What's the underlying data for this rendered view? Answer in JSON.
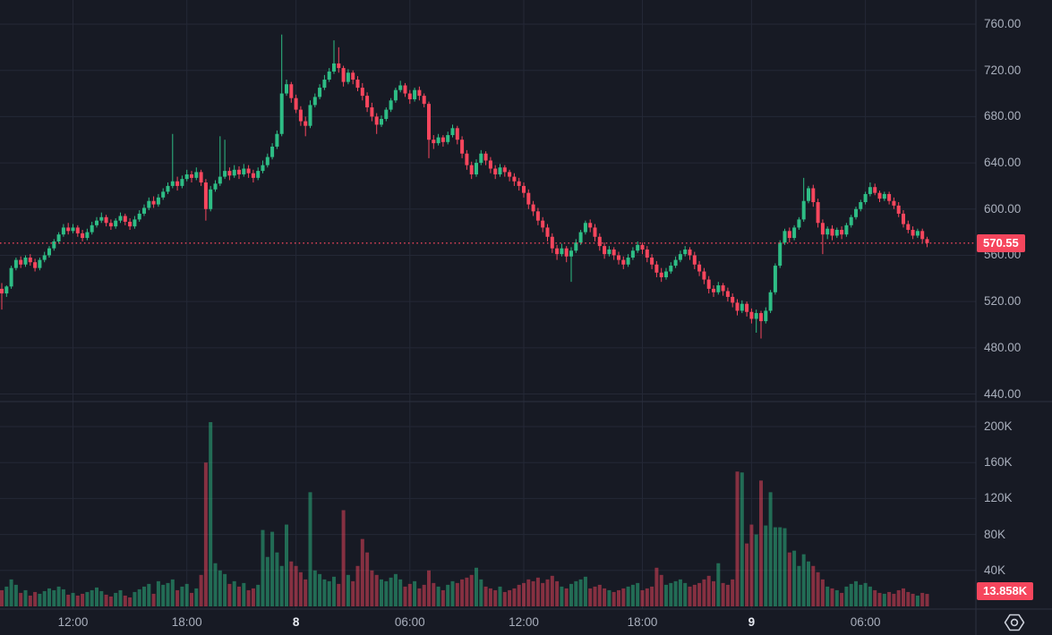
{
  "chart": {
    "kind": "tradingview-style price chart with volume pane",
    "colors": {
      "background": "#171a24",
      "grid": "#242836",
      "separator": "#2c3140",
      "up": "#2ebd85",
      "down": "#f6465d",
      "volume_up": "rgba(46,189,133,0.5)",
      "volume_down": "rgba(246,70,93,0.5)",
      "axis_text": "#a9afbc",
      "axis_text_bold": "#e7eaf1",
      "last_price_line": "#f6465d",
      "badge_bg": "#f6465d",
      "badge_text": "#ffffff"
    }
  },
  "chart_data": {
    "type": "candlestick",
    "panes": [
      "price",
      "volume"
    ],
    "interval_minutes": 15,
    "grid": true,
    "price_axis": {
      "side": "right",
      "range_visible": [
        435,
        781
      ],
      "ticks": [
        {
          "value": 760,
          "label": "760.00"
        },
        {
          "value": 720,
          "label": "720.00"
        },
        {
          "value": 680,
          "label": "680.00"
        },
        {
          "value": 640,
          "label": "640.00"
        },
        {
          "value": 600,
          "label": "600.00"
        },
        {
          "value": 560,
          "label": "560.00"
        },
        {
          "value": 520,
          "label": "520.00"
        },
        {
          "value": 480,
          "label": "480.00"
        },
        {
          "value": 440,
          "label": "440.00"
        }
      ]
    },
    "volume_axis": {
      "side": "right",
      "range_visible": [
        0,
        228
      ],
      "unit": "K",
      "ticks": [
        {
          "value": 200,
          "label": "200K"
        },
        {
          "value": 160,
          "label": "160K"
        },
        {
          "value": 120,
          "label": "120K"
        },
        {
          "value": 80,
          "label": "80K"
        },
        {
          "value": 40,
          "label": "40K"
        }
      ]
    },
    "time_axis": {
      "ticks": [
        {
          "index": 15,
          "label": "12:00",
          "bold": false
        },
        {
          "index": 39,
          "label": "18:00",
          "bold": false
        },
        {
          "index": 62,
          "label": "8",
          "bold": true
        },
        {
          "index": 86,
          "label": "06:00",
          "bold": false
        },
        {
          "index": 110,
          "label": "12:00",
          "bold": false
        },
        {
          "index": 135,
          "label": "18:00",
          "bold": false
        },
        {
          "index": 158,
          "label": "9",
          "bold": true
        },
        {
          "index": 182,
          "label": "06:00",
          "bold": false
        }
      ]
    },
    "last_price": 570.55,
    "last_price_label": "570.55",
    "last_volume_label": "13.858K",
    "candles_format": [
      "open",
      "high",
      "low",
      "close",
      "volume_K"
    ],
    "candles": [
      [
        531,
        536,
        513,
        527,
        18
      ],
      [
        527,
        534,
        524,
        533,
        22
      ],
      [
        533,
        551,
        531,
        549,
        30
      ],
      [
        549,
        558,
        547,
        556,
        24
      ],
      [
        556,
        559,
        549,
        552,
        15
      ],
      [
        552,
        560,
        550,
        558,
        18
      ],
      [
        558,
        561,
        551,
        554,
        12
      ],
      [
        554,
        557,
        546,
        549,
        16
      ],
      [
        549,
        558,
        547,
        556,
        14
      ],
      [
        556,
        563,
        554,
        560,
        17
      ],
      [
        560,
        568,
        558,
        566,
        20
      ],
      [
        566,
        574,
        564,
        572,
        18
      ],
      [
        572,
        580,
        570,
        578,
        22
      ],
      [
        578,
        587,
        576,
        584,
        19
      ],
      [
        584,
        588,
        578,
        581,
        13
      ],
      [
        581,
        587,
        579,
        584,
        15
      ],
      [
        584,
        586,
        576,
        579,
        12
      ],
      [
        579,
        582,
        572,
        575,
        14
      ],
      [
        575,
        583,
        573,
        580,
        16
      ],
      [
        580,
        589,
        578,
        586,
        18
      ],
      [
        586,
        593,
        584,
        590,
        21
      ],
      [
        590,
        597,
        588,
        593,
        17
      ],
      [
        593,
        595,
        585,
        588,
        13
      ],
      [
        588,
        591,
        582,
        585,
        11
      ],
      [
        585,
        592,
        583,
        590,
        15
      ],
      [
        590,
        597,
        588,
        594,
        18
      ],
      [
        594,
        596,
        586,
        589,
        12
      ],
      [
        589,
        592,
        582,
        585,
        10
      ],
      [
        585,
        594,
        583,
        591,
        16
      ],
      [
        591,
        599,
        589,
        596,
        19
      ],
      [
        596,
        604,
        594,
        601,
        22
      ],
      [
        601,
        610,
        599,
        607,
        25
      ],
      [
        607,
        611,
        601,
        604,
        14
      ],
      [
        604,
        613,
        602,
        610,
        28
      ],
      [
        610,
        618,
        608,
        615,
        24
      ],
      [
        615,
        623,
        613,
        620,
        26
      ],
      [
        620,
        665,
        618,
        624,
        30
      ],
      [
        624,
        628,
        616,
        620,
        18
      ],
      [
        620,
        629,
        618,
        626,
        22
      ],
      [
        626,
        634,
        624,
        630,
        25
      ],
      [
        630,
        633,
        623,
        627,
        15
      ],
      [
        627,
        636,
        625,
        632,
        20
      ],
      [
        632,
        634,
        620,
        623,
        35
      ],
      [
        623,
        626,
        590,
        600,
        160
      ],
      [
        600,
        620,
        598,
        617,
        205
      ],
      [
        617,
        625,
        615,
        622,
        48
      ],
      [
        622,
        663,
        620,
        628,
        40
      ],
      [
        628,
        660,
        626,
        633,
        36
      ],
      [
        633,
        636,
        625,
        629,
        25
      ],
      [
        629,
        638,
        627,
        634,
        28
      ],
      [
        634,
        637,
        626,
        630,
        22
      ],
      [
        630,
        639,
        628,
        635,
        26
      ],
      [
        635,
        638,
        627,
        631,
        18
      ],
      [
        631,
        634,
        623,
        627,
        20
      ],
      [
        627,
        636,
        625,
        633,
        24
      ],
      [
        633,
        642,
        631,
        638,
        85
      ],
      [
        638,
        648,
        636,
        645,
        55
      ],
      [
        645,
        657,
        643,
        654,
        83
      ],
      [
        654,
        668,
        652,
        665,
        60
      ],
      [
        665,
        751,
        663,
        700,
        45
      ],
      [
        700,
        712,
        698,
        708,
        91
      ],
      [
        708,
        710,
        692,
        696,
        50
      ],
      [
        696,
        699,
        683,
        686,
        45
      ],
      [
        686,
        689,
        672,
        676,
        38
      ],
      [
        676,
        680,
        663,
        672,
        30
      ],
      [
        672,
        694,
        670,
        690,
        127
      ],
      [
        690,
        700,
        688,
        697,
        40
      ],
      [
        697,
        708,
        695,
        705,
        36
      ],
      [
        705,
        716,
        703,
        712,
        30
      ],
      [
        712,
        722,
        710,
        719,
        28
      ],
      [
        719,
        746,
        717,
        726,
        33
      ],
      [
        726,
        740,
        718,
        722,
        25
      ],
      [
        722,
        724,
        706,
        710,
        107
      ],
      [
        710,
        721,
        708,
        718,
        35
      ],
      [
        718,
        720,
        708,
        712,
        28
      ],
      [
        712,
        715,
        702,
        705,
        45
      ],
      [
        705,
        709,
        694,
        698,
        75
      ],
      [
        698,
        701,
        684,
        688,
        60
      ],
      [
        688,
        692,
        676,
        680,
        40
      ],
      [
        680,
        683,
        665,
        673,
        35
      ],
      [
        673,
        681,
        671,
        678,
        30
      ],
      [
        678,
        688,
        676,
        686,
        28
      ],
      [
        686,
        696,
        684,
        694,
        32
      ],
      [
        694,
        705,
        692,
        703,
        36
      ],
      [
        703,
        711,
        701,
        707,
        30
      ],
      [
        707,
        709,
        697,
        700,
        22
      ],
      [
        700,
        703,
        691,
        695,
        25
      ],
      [
        695,
        705,
        693,
        703,
        28
      ],
      [
        703,
        706,
        694,
        698,
        20
      ],
      [
        698,
        700,
        688,
        691,
        24
      ],
      [
        691,
        693,
        644,
        660,
        40
      ],
      [
        660,
        664,
        652,
        657,
        26
      ],
      [
        657,
        665,
        655,
        662,
        22
      ],
      [
        662,
        664,
        654,
        658,
        18
      ],
      [
        658,
        667,
        656,
        664,
        24
      ],
      [
        664,
        673,
        662,
        670,
        28
      ],
      [
        670,
        672,
        656,
        660,
        26
      ],
      [
        660,
        663,
        644,
        648,
        30
      ],
      [
        648,
        651,
        634,
        638,
        32
      ],
      [
        638,
        641,
        626,
        630,
        35
      ],
      [
        630,
        643,
        628,
        640,
        43
      ],
      [
        640,
        651,
        638,
        648,
        30
      ],
      [
        648,
        650,
        638,
        642,
        22
      ],
      [
        642,
        645,
        631,
        635,
        20
      ],
      [
        635,
        638,
        626,
        630,
        18
      ],
      [
        630,
        639,
        628,
        636,
        22
      ],
      [
        636,
        638,
        628,
        632,
        16
      ],
      [
        632,
        634,
        624,
        628,
        18
      ],
      [
        628,
        631,
        620,
        624,
        20
      ],
      [
        624,
        627,
        616,
        620,
        24
      ],
      [
        620,
        623,
        610,
        614,
        26
      ],
      [
        614,
        617,
        600,
        604,
        30
      ],
      [
        604,
        607,
        594,
        598,
        28
      ],
      [
        598,
        601,
        586,
        590,
        32
      ],
      [
        590,
        593,
        580,
        584,
        26
      ],
      [
        584,
        587,
        572,
        576,
        30
      ],
      [
        576,
        579,
        562,
        566,
        34
      ],
      [
        566,
        569,
        556,
        561,
        28
      ],
      [
        561,
        570,
        559,
        566,
        22
      ],
      [
        566,
        568,
        554,
        559,
        20
      ],
      [
        559,
        567,
        537,
        564,
        25
      ],
      [
        564,
        574,
        562,
        571,
        28
      ],
      [
        571,
        582,
        569,
        580,
        30
      ],
      [
        580,
        590,
        578,
        588,
        33
      ],
      [
        588,
        591,
        580,
        584,
        20
      ],
      [
        584,
        587,
        572,
        576,
        22
      ],
      [
        576,
        579,
        564,
        568,
        24
      ],
      [
        568,
        571,
        557,
        561,
        20
      ],
      [
        561,
        568,
        559,
        565,
        18
      ],
      [
        565,
        567,
        556,
        560,
        16
      ],
      [
        560,
        563,
        552,
        556,
        18
      ],
      [
        556,
        559,
        548,
        552,
        20
      ],
      [
        552,
        561,
        550,
        558,
        22
      ],
      [
        558,
        567,
        556,
        564,
        24
      ],
      [
        564,
        572,
        562,
        569,
        26
      ],
      [
        569,
        571,
        561,
        565,
        18
      ],
      [
        565,
        568,
        554,
        558,
        20
      ],
      [
        558,
        561,
        548,
        552,
        22
      ],
      [
        552,
        555,
        541,
        545,
        43
      ],
      [
        545,
        549,
        537,
        541,
        35
      ],
      [
        541,
        549,
        539,
        546,
        24
      ],
      [
        546,
        554,
        544,
        551,
        26
      ],
      [
        551,
        559,
        549,
        556,
        28
      ],
      [
        556,
        564,
        554,
        561,
        30
      ],
      [
        561,
        568,
        559,
        565,
        26
      ],
      [
        565,
        567,
        556,
        560,
        22
      ],
      [
        560,
        563,
        548,
        552,
        24
      ],
      [
        552,
        555,
        542,
        546,
        26
      ],
      [
        546,
        549,
        535,
        539,
        30
      ],
      [
        539,
        542,
        527,
        531,
        34
      ],
      [
        531,
        534,
        524,
        528,
        28
      ],
      [
        528,
        537,
        526,
        534,
        48
      ],
      [
        534,
        536,
        525,
        529,
        26
      ],
      [
        529,
        532,
        520,
        524,
        24
      ],
      [
        524,
        527,
        515,
        519,
        30
      ],
      [
        519,
        522,
        508,
        512,
        150
      ],
      [
        512,
        521,
        510,
        518,
        149
      ],
      [
        518,
        520,
        507,
        511,
        70
      ],
      [
        511,
        514,
        501,
        505,
        91
      ],
      [
        505,
        513,
        493,
        510,
        80
      ],
      [
        510,
        512,
        488,
        503,
        140
      ],
      [
        503,
        515,
        501,
        512,
        90
      ],
      [
        512,
        530,
        510,
        528,
        127
      ],
      [
        528,
        553,
        526,
        551,
        88
      ],
      [
        551,
        573,
        549,
        571,
        88
      ],
      [
        571,
        583,
        569,
        581,
        87
      ],
      [
        581,
        584,
        571,
        575,
        60
      ],
      [
        575,
        586,
        573,
        584,
        62
      ],
      [
        584,
        593,
        582,
        591,
        45
      ],
      [
        591,
        627,
        589,
        607,
        58
      ],
      [
        607,
        620,
        605,
        618,
        50
      ],
      [
        618,
        621,
        602,
        606,
        45
      ],
      [
        606,
        609,
        584,
        588,
        38
      ],
      [
        588,
        591,
        561,
        578,
        30
      ],
      [
        578,
        585,
        574,
        583,
        22
      ],
      [
        583,
        586,
        573,
        577,
        20
      ],
      [
        577,
        584,
        575,
        582,
        18
      ],
      [
        582,
        585,
        574,
        578,
        15
      ],
      [
        578,
        588,
        576,
        586,
        22
      ],
      [
        586,
        595,
        584,
        593,
        25
      ],
      [
        593,
        602,
        591,
        600,
        28
      ],
      [
        600,
        608,
        598,
        606,
        24
      ],
      [
        606,
        615,
        604,
        613,
        26
      ],
      [
        613,
        623,
        611,
        619,
        22
      ],
      [
        619,
        622,
        612,
        614,
        18
      ],
      [
        614,
        616,
        606,
        609,
        15
      ],
      [
        609,
        615,
        607,
        613,
        14
      ],
      [
        613,
        615,
        604,
        607,
        16
      ],
      [
        607,
        610,
        600,
        603,
        14
      ],
      [
        603,
        606,
        593,
        596,
        18
      ],
      [
        596,
        599,
        584,
        587,
        20
      ],
      [
        587,
        590,
        579,
        582,
        16
      ],
      [
        582,
        585,
        574,
        577,
        14
      ],
      [
        577,
        583,
        575,
        581,
        12
      ],
      [
        581,
        583,
        571,
        574,
        15
      ],
      [
        574,
        576,
        567,
        570.55,
        13.858
      ]
    ]
  }
}
